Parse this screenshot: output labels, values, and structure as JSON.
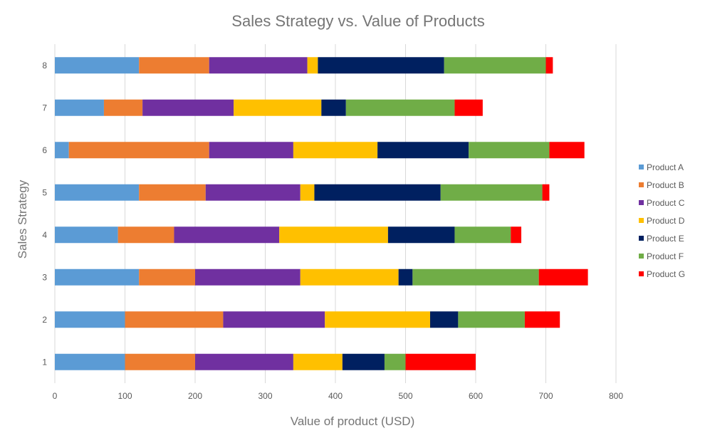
{
  "chart_data": {
    "type": "bar",
    "orientation": "horizontal",
    "stacked": true,
    "title": "Sales Strategy vs. Value of Products",
    "xlabel": "Value of product (USD)",
    "ylabel": "Sales Strategy",
    "categories": [
      "1",
      "2",
      "3",
      "4",
      "5",
      "6",
      "7",
      "8"
    ],
    "xlim": [
      0,
      800
    ],
    "xticks": [
      0,
      100,
      200,
      300,
      400,
      500,
      600,
      700,
      800
    ],
    "grid": true,
    "legend_position": "right",
    "series": [
      {
        "name": "Product A",
        "color": "#5B9BD5",
        "values": [
          100,
          100,
          120,
          90,
          120,
          20,
          70,
          120
        ]
      },
      {
        "name": "Product B",
        "color": "#ED7D31",
        "values": [
          100,
          140,
          80,
          80,
          95,
          200,
          55,
          100
        ]
      },
      {
        "name": "Product C",
        "color": "#7030A0",
        "values": [
          140,
          145,
          150,
          150,
          135,
          120,
          130,
          140
        ]
      },
      {
        "name": "Product D",
        "color": "#FFC000",
        "values": [
          70,
          150,
          140,
          155,
          20,
          120,
          125,
          15
        ]
      },
      {
        "name": "Product E",
        "color": "#002060",
        "values": [
          60,
          40,
          20,
          95,
          180,
          130,
          35,
          180
        ]
      },
      {
        "name": "Product F",
        "color": "#70AD47",
        "values": [
          30,
          95,
          180,
          80,
          145,
          115,
          155,
          145
        ]
      },
      {
        "name": "Product G",
        "color": "#FF0000",
        "values": [
          100,
          50,
          70,
          15,
          10,
          50,
          40,
          10
        ]
      }
    ]
  }
}
